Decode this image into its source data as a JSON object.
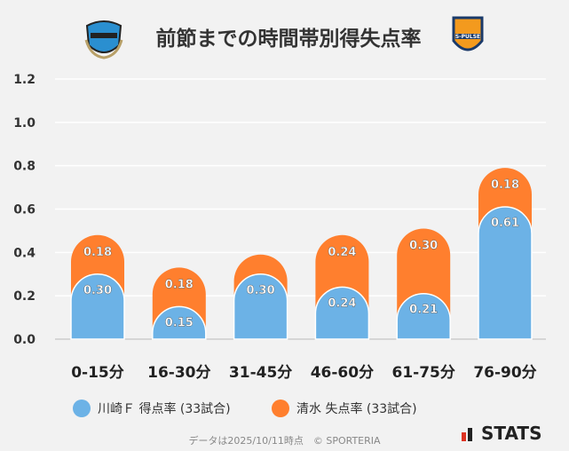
{
  "header": {
    "title": "前節までの時間帯別得失点率",
    "home_logo_text": "KAWASAKI FRONTALE",
    "away_logo_text": "S-PULSE"
  },
  "chart_data": {
    "type": "bar",
    "stacked": true,
    "title": "前節までの時間帯別得失点率",
    "categories": [
      "0-15分",
      "16-30分",
      "31-45分",
      "46-60分",
      "61-75分",
      "76-90分"
    ],
    "series": [
      {
        "name": "川崎Ｆ 得点率 (33試合)",
        "color": "#6cb2e6",
        "values": [
          0.3,
          0.15,
          0.3,
          0.24,
          0.21,
          0.61
        ],
        "labels": [
          "0.30",
          "0.15",
          "0.30",
          "0.24",
          "0.21",
          "0.61"
        ]
      },
      {
        "name": "清水 失点率 (33試合)",
        "color": "#ff7f2e",
        "values": [
          0.18,
          0.18,
          0.09,
          0.24,
          0.3,
          0.18
        ],
        "labels": [
          "0.18",
          "0.18",
          "",
          "0.24",
          "0.30",
          "0.18"
        ]
      }
    ],
    "ylim": [
      0,
      1.2
    ],
    "yticks": [
      "0.0",
      "0.2",
      "0.4",
      "0.6",
      "0.8",
      "1.0",
      "1.2"
    ],
    "grid": true,
    "legend": "bottom"
  },
  "footer": {
    "note": "データは2025/10/11時点　© SPORTERIA",
    "brand": "STATS"
  }
}
